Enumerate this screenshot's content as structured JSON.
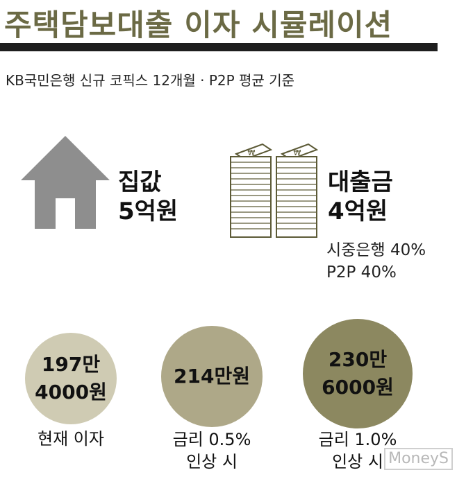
{
  "header": {
    "title": "주택담보대출 이자 시뮬레이션",
    "subtitle": "KB국민은행 신규 코픽스 12개월 · P2P 평균 기준"
  },
  "house": {
    "icon": "house-icon",
    "label_line1": "집값",
    "label_line2": "5억원"
  },
  "loan": {
    "icon": "money-stack-icon",
    "label_line1": "대출금",
    "label_line2": "4억원",
    "breakdown": [
      "시중은행 40%",
      "P2P 40%"
    ]
  },
  "scenarios": [
    {
      "amount_lines": [
        "197만",
        "4000원"
      ],
      "caption_lines": [
        "현재 이자"
      ],
      "color": "#cfcbb3"
    },
    {
      "amount_lines": [
        "214만원"
      ],
      "caption_lines": [
        "금리 0.5%",
        "인상 시"
      ],
      "color": "#aea888"
    },
    {
      "amount_lines": [
        "230만",
        "6000원"
      ],
      "caption_lines": [
        "금리 1.0%",
        "인상 시"
      ],
      "color": "#8c8860"
    }
  ],
  "colors": {
    "title": "#6b6a45",
    "house": "#8e8e8e",
    "money_stroke": "#5c5a36",
    "rule": "#1e1e1e"
  },
  "watermark": "MoneyS"
}
